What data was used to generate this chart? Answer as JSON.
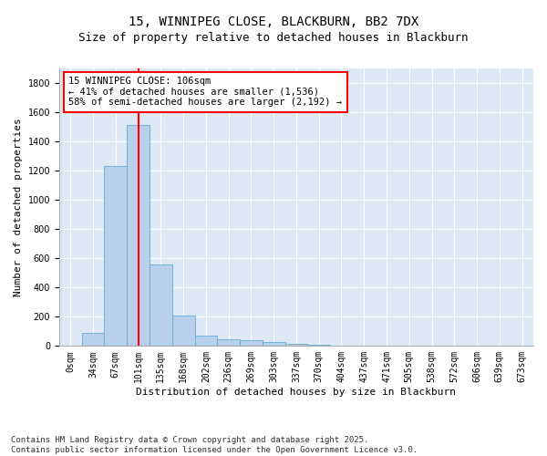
{
  "title1": "15, WINNIPEG CLOSE, BLACKBURN, BB2 7DX",
  "title2": "Size of property relative to detached houses in Blackburn",
  "xlabel": "Distribution of detached houses by size in Blackburn",
  "ylabel": "Number of detached properties",
  "categories": [
    "0sqm",
    "34sqm",
    "67sqm",
    "101sqm",
    "135sqm",
    "168sqm",
    "202sqm",
    "236sqm",
    "269sqm",
    "303sqm",
    "337sqm",
    "370sqm",
    "404sqm",
    "437sqm",
    "471sqm",
    "505sqm",
    "538sqm",
    "572sqm",
    "606sqm",
    "639sqm",
    "673sqm"
  ],
  "values": [
    0,
    90,
    1230,
    1515,
    560,
    210,
    70,
    48,
    37,
    28,
    15,
    8,
    5,
    3,
    2,
    1,
    0,
    0,
    0,
    0,
    0
  ],
  "bar_color": "#b8d0ea",
  "bar_edge_color": "#6aaad4",
  "vline_x": 3,
  "vline_color": "red",
  "annotation_text": "15 WINNIPEG CLOSE: 106sqm\n← 41% of detached houses are smaller (1,536)\n58% of semi-detached houses are larger (2,192) →",
  "annotation_box_color": "white",
  "annotation_box_edge_color": "red",
  "ylim": [
    0,
    1900
  ],
  "yticks": [
    0,
    200,
    400,
    600,
    800,
    1000,
    1200,
    1400,
    1600,
    1800
  ],
  "bg_color": "#dce9f5",
  "grid_color": "white",
  "footer1": "Contains HM Land Registry data © Crown copyright and database right 2025.",
  "footer2": "Contains public sector information licensed under the Open Government Licence v3.0.",
  "title_fontsize": 10,
  "subtitle_fontsize": 9,
  "axis_label_fontsize": 8,
  "tick_fontsize": 7,
  "annotation_fontsize": 7.5,
  "footer_fontsize": 6.5
}
